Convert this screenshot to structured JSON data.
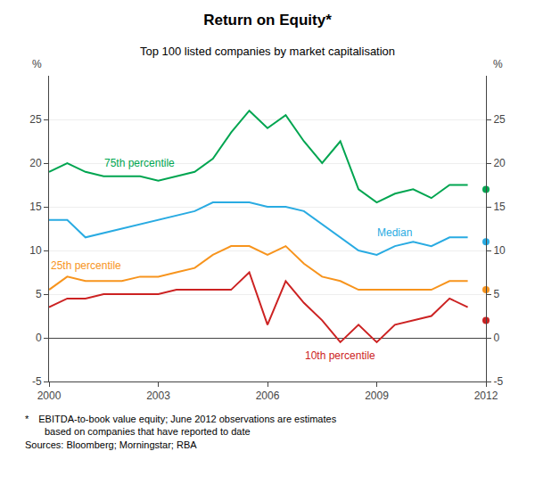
{
  "chart_data": {
    "type": "line",
    "title": "Return on Equity*",
    "subtitle": "Top 100 listed companies by market capitalisation",
    "notes": [
      "* EBITDA-to-book value equity; June 2012 observations are estimates\n  based on companies that have reported to date",
      "Sources: Bloomberg; Morningstar; RBA"
    ],
    "y_label": "%",
    "y2_label": "%",
    "x": [
      2000.0,
      2000.5,
      2001.0,
      2001.5,
      2002.0,
      2002.5,
      2003.0,
      2003.5,
      2004.0,
      2004.5,
      2005.0,
      2005.5,
      2006.0,
      2006.5,
      2007.0,
      2007.5,
      2008.0,
      2008.5,
      2009.0,
      2009.5,
      2010.0,
      2010.5,
      2011.0,
      2011.5
    ],
    "series": [
      {
        "name": "75th percentile",
        "color": "#00a550",
        "values": [
          19.0,
          20.0,
          19.0,
          18.5,
          18.5,
          18.5,
          18.0,
          18.5,
          19.0,
          20.5,
          23.5,
          26.0,
          24.0,
          25.5,
          22.5,
          20.0,
          22.5,
          17.0,
          15.5,
          16.5,
          17.0,
          16.0,
          17.5,
          17.5
        ],
        "estimate": {
          "x": 2012.0,
          "value": 17.0
        }
      },
      {
        "name": "Median",
        "color": "#29abe2",
        "values": [
          13.5,
          13.5,
          11.5,
          12.0,
          12.5,
          13.0,
          13.5,
          14.0,
          14.5,
          15.5,
          15.5,
          15.5,
          15.0,
          15.0,
          14.5,
          13.0,
          11.5,
          10.0,
          9.5,
          10.5,
          11.0,
          10.5,
          11.5,
          11.5
        ],
        "estimate": {
          "x": 2012.0,
          "value": 11.0
        }
      },
      {
        "name": "25th percentile",
        "color": "#f7941d",
        "values": [
          5.5,
          7.0,
          6.5,
          6.5,
          6.5,
          7.0,
          7.0,
          7.5,
          8.0,
          9.5,
          10.5,
          10.5,
          9.5,
          10.5,
          8.5,
          7.0,
          6.5,
          5.5,
          5.5,
          5.5,
          5.5,
          5.5,
          6.5,
          6.5
        ],
        "estimate": {
          "x": 2012.0,
          "value": 5.5
        }
      },
      {
        "name": "10th percentile",
        "color": "#cc2222",
        "values": [
          3.5,
          4.5,
          4.5,
          5.0,
          5.0,
          5.0,
          5.0,
          5.5,
          5.5,
          5.5,
          5.5,
          7.5,
          1.5,
          6.5,
          4.0,
          2.0,
          -0.5,
          1.5,
          -0.5,
          1.5,
          2.0,
          2.5,
          4.5,
          3.5
        ],
        "estimate": {
          "x": 2012.0,
          "value": 2.0
        }
      }
    ],
    "xlim": [
      2000,
      2012
    ],
    "xticks": [
      2000,
      2003,
      2006,
      2009,
      2012
    ],
    "ylim": [
      -5,
      30
    ],
    "yticks": [
      -5,
      0,
      5,
      10,
      15,
      20,
      25
    ],
    "y2lim": [
      -5,
      30
    ],
    "y2ticks": [
      -5,
      0,
      5,
      10,
      15,
      20,
      25
    ],
    "grid": "y"
  }
}
